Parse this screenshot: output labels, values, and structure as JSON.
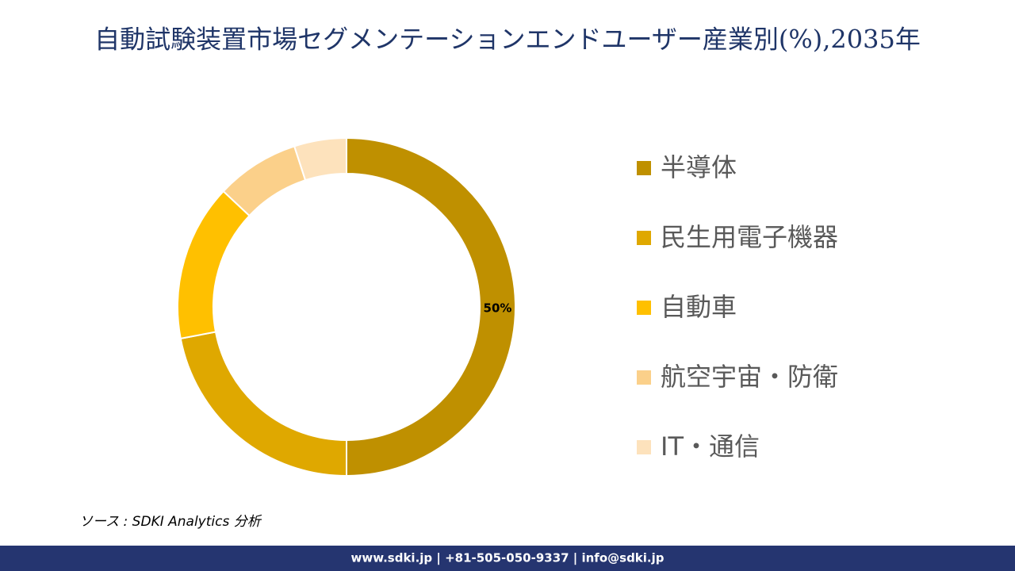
{
  "chart_data": {
    "type": "donut",
    "title": "自動試験装置市場セグメンテーションエンドユーザー産業別(%),2035年",
    "categories": [
      "半導体",
      "民生用電子機器",
      "自動車",
      "航空宇宙・防衛",
      "IT・通信"
    ],
    "values": [
      50,
      22,
      15,
      8,
      5
    ],
    "value_labels": [
      "50%",
      null,
      null,
      null,
      null
    ],
    "colors": [
      "#bf9000",
      "#dfa800",
      "#ffc000",
      "#fbd08a",
      "#fde2bc"
    ],
    "source": "ソース : SDKI Analytics 分析",
    "footer": "www.sdki.jp | +81-505-050-9337 | info@sdki.jp"
  }
}
